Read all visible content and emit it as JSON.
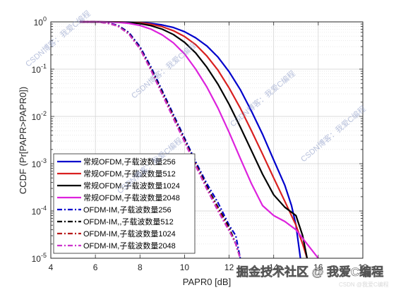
{
  "chart_data": {
    "type": "line",
    "xlabel": "PAPR0 [dB]",
    "ylabel": "CCDF (Pr[PAPR>PAPR0])",
    "xlim": [
      4,
      18
    ],
    "ylim": [
      1e-05,
      1
    ],
    "yscale": "log",
    "x_ticks": [
      "4",
      "6",
      "8",
      "10",
      "12",
      "14",
      "16",
      "18"
    ],
    "y_ticks": [
      "10^0",
      "10^-1",
      "10^-2",
      "10^-3",
      "10^-4",
      "10^-5"
    ],
    "grid": true,
    "legend_position": "bottom-left",
    "series": [
      {
        "name": "常规OFDM,子载波数量256",
        "color": "#0000cc",
        "style": "solid",
        "points": [
          [
            5.3,
            1
          ],
          [
            6.2,
            1
          ],
          [
            7,
            0.998
          ],
          [
            7.5,
            0.99
          ],
          [
            8,
            0.97
          ],
          [
            8.5,
            0.93
          ],
          [
            9,
            0.86
          ],
          [
            9.5,
            0.76
          ],
          [
            10,
            0.62
          ],
          [
            10.5,
            0.46
          ],
          [
            11,
            0.31
          ],
          [
            11.5,
            0.18
          ],
          [
            12,
            0.088
          ],
          [
            12.5,
            0.037
          ],
          [
            13,
            0.013
          ],
          [
            13.5,
            0.0042
          ],
          [
            14,
            0.0012
          ],
          [
            14.5,
            0.00035
          ],
          [
            14.8,
            0.00013
          ],
          [
            15,
            5e-05
          ],
          [
            15.2,
            1e-05
          ]
        ]
      },
      {
        "name": "常规OFDM,子载波数量512",
        "color": "#d92020",
        "style": "solid",
        "points": [
          [
            5.3,
            1
          ],
          [
            6.2,
            1
          ],
          [
            7,
            0.996
          ],
          [
            7.5,
            0.98
          ],
          [
            8,
            0.95
          ],
          [
            8.5,
            0.89
          ],
          [
            9,
            0.79
          ],
          [
            9.5,
            0.65
          ],
          [
            10,
            0.49
          ],
          [
            10.5,
            0.33
          ],
          [
            11,
            0.19
          ],
          [
            11.5,
            0.095
          ],
          [
            12,
            0.04
          ],
          [
            12.5,
            0.015
          ],
          [
            13,
            0.005
          ],
          [
            13.5,
            0.0016
          ],
          [
            14,
            0.0005
          ],
          [
            14.5,
            0.00016
          ],
          [
            15,
            5e-05
          ],
          [
            15.3,
            2e-05
          ],
          [
            15.5,
            1e-05
          ]
        ]
      },
      {
        "name": "常规OFDM,子载波数量1024",
        "color": "#000000",
        "style": "solid",
        "points": [
          [
            5.3,
            1
          ],
          [
            6.2,
            1
          ],
          [
            7,
            0.99
          ],
          [
            7.5,
            0.97
          ],
          [
            8,
            0.92
          ],
          [
            8.5,
            0.83
          ],
          [
            9,
            0.7
          ],
          [
            9.5,
            0.54
          ],
          [
            10,
            0.37
          ],
          [
            10.5,
            0.22
          ],
          [
            11,
            0.11
          ],
          [
            11.5,
            0.048
          ],
          [
            12,
            0.018
          ],
          [
            12.5,
            0.006
          ],
          [
            13,
            0.0019
          ],
          [
            13.5,
            0.0006
          ],
          [
            14,
            0.00022
          ],
          [
            14.5,
            0.00012
          ],
          [
            15,
            8e-05
          ],
          [
            15.3,
            3e-05
          ],
          [
            15.5,
            1e-05
          ]
        ]
      },
      {
        "name": "常规OFDM,子载波数量2048",
        "color": "#dd22dd",
        "style": "solid",
        "points": [
          [
            5.3,
            1
          ],
          [
            6.2,
            1
          ],
          [
            7,
            0.98
          ],
          [
            7.5,
            0.93
          ],
          [
            8,
            0.84
          ],
          [
            8.5,
            0.7
          ],
          [
            9,
            0.53
          ],
          [
            9.5,
            0.36
          ],
          [
            10,
            0.21
          ],
          [
            10.5,
            0.1
          ],
          [
            11,
            0.042
          ],
          [
            11.5,
            0.015
          ],
          [
            12,
            0.0046
          ],
          [
            12.5,
            0.0013
          ],
          [
            13,
            0.00038
          ],
          [
            13.5,
            0.00013
          ],
          [
            14,
            8e-05
          ],
          [
            14.5,
            6e-05
          ],
          [
            15,
            4e-05
          ],
          [
            15.5,
            2e-05
          ],
          [
            16,
            1e-05
          ]
        ]
      },
      {
        "name": "OFDM-IM,子载波数量256",
        "color": "#0000cc",
        "style": "dashdot",
        "points": [
          [
            5.3,
            1
          ],
          [
            6,
            1
          ],
          [
            6.5,
            0.96
          ],
          [
            7,
            0.85
          ],
          [
            7.5,
            0.6
          ],
          [
            8,
            0.3
          ],
          [
            8.5,
            0.11
          ],
          [
            9,
            0.035
          ],
          [
            9.5,
            0.011
          ],
          [
            10,
            0.0035
          ],
          [
            10.5,
            0.0011
          ],
          [
            11,
            0.00038
          ],
          [
            11.5,
            0.00015
          ],
          [
            12,
            5e-05
          ],
          [
            12.3,
            3e-05
          ],
          [
            12.5,
            1e-05
          ]
        ]
      },
      {
        "name": "OFDM-IM,,子载波数量512",
        "color": "#000000",
        "style": "dashdot",
        "points": [
          [
            5.3,
            1
          ],
          [
            6,
            1
          ],
          [
            6.5,
            0.95
          ],
          [
            7,
            0.83
          ],
          [
            7.5,
            0.57
          ],
          [
            8,
            0.28
          ],
          [
            8.5,
            0.1
          ],
          [
            9,
            0.032
          ],
          [
            9.5,
            0.01
          ],
          [
            10,
            0.0032
          ],
          [
            10.5,
            0.001
          ],
          [
            11,
            0.00033
          ],
          [
            11.5,
            0.00012
          ],
          [
            12,
            4.5e-05
          ],
          [
            12.3,
            2e-05
          ],
          [
            12.5,
            1e-05
          ]
        ]
      },
      {
        "name": "OFDM-IM,子载波数量1024",
        "color": "#b81a1a",
        "style": "dashdot",
        "points": [
          [
            5.3,
            1
          ],
          [
            6,
            1
          ],
          [
            6.5,
            0.95
          ],
          [
            7,
            0.82
          ],
          [
            7.5,
            0.56
          ],
          [
            8,
            0.27
          ],
          [
            8.5,
            0.095
          ],
          [
            9,
            0.03
          ],
          [
            9.5,
            0.0095
          ],
          [
            10,
            0.003
          ],
          [
            10.5,
            0.00095
          ],
          [
            11,
            0.0003
          ],
          [
            11.5,
            0.00011
          ],
          [
            12,
            4e-05
          ],
          [
            12.3,
            2e-05
          ],
          [
            12.5,
            1e-05
          ]
        ]
      },
      {
        "name": "OFDM-IM,子载波数量2048",
        "color": "#cc33cc",
        "style": "dashdot",
        "points": [
          [
            5.3,
            1
          ],
          [
            6,
            1
          ],
          [
            6.5,
            0.95
          ],
          [
            7,
            0.82
          ],
          [
            7.5,
            0.55
          ],
          [
            8,
            0.27
          ],
          [
            8.5,
            0.093
          ],
          [
            9,
            0.029
          ],
          [
            9.5,
            0.009
          ],
          [
            10,
            0.0029
          ],
          [
            10.5,
            0.0009
          ],
          [
            11,
            0.00029
          ],
          [
            11.5,
            0.0001
          ],
          [
            12,
            3.8e-05
          ],
          [
            12.3,
            2e-05
          ],
          [
            12.5,
            1e-05
          ]
        ]
      }
    ]
  },
  "watermarks": {
    "blog_text": "CSDN博客：我爱C编程",
    "corner_main": "掘金技术社区 @ 我爱C编程",
    "corner_sub": "CSDN @我爱C编程"
  }
}
